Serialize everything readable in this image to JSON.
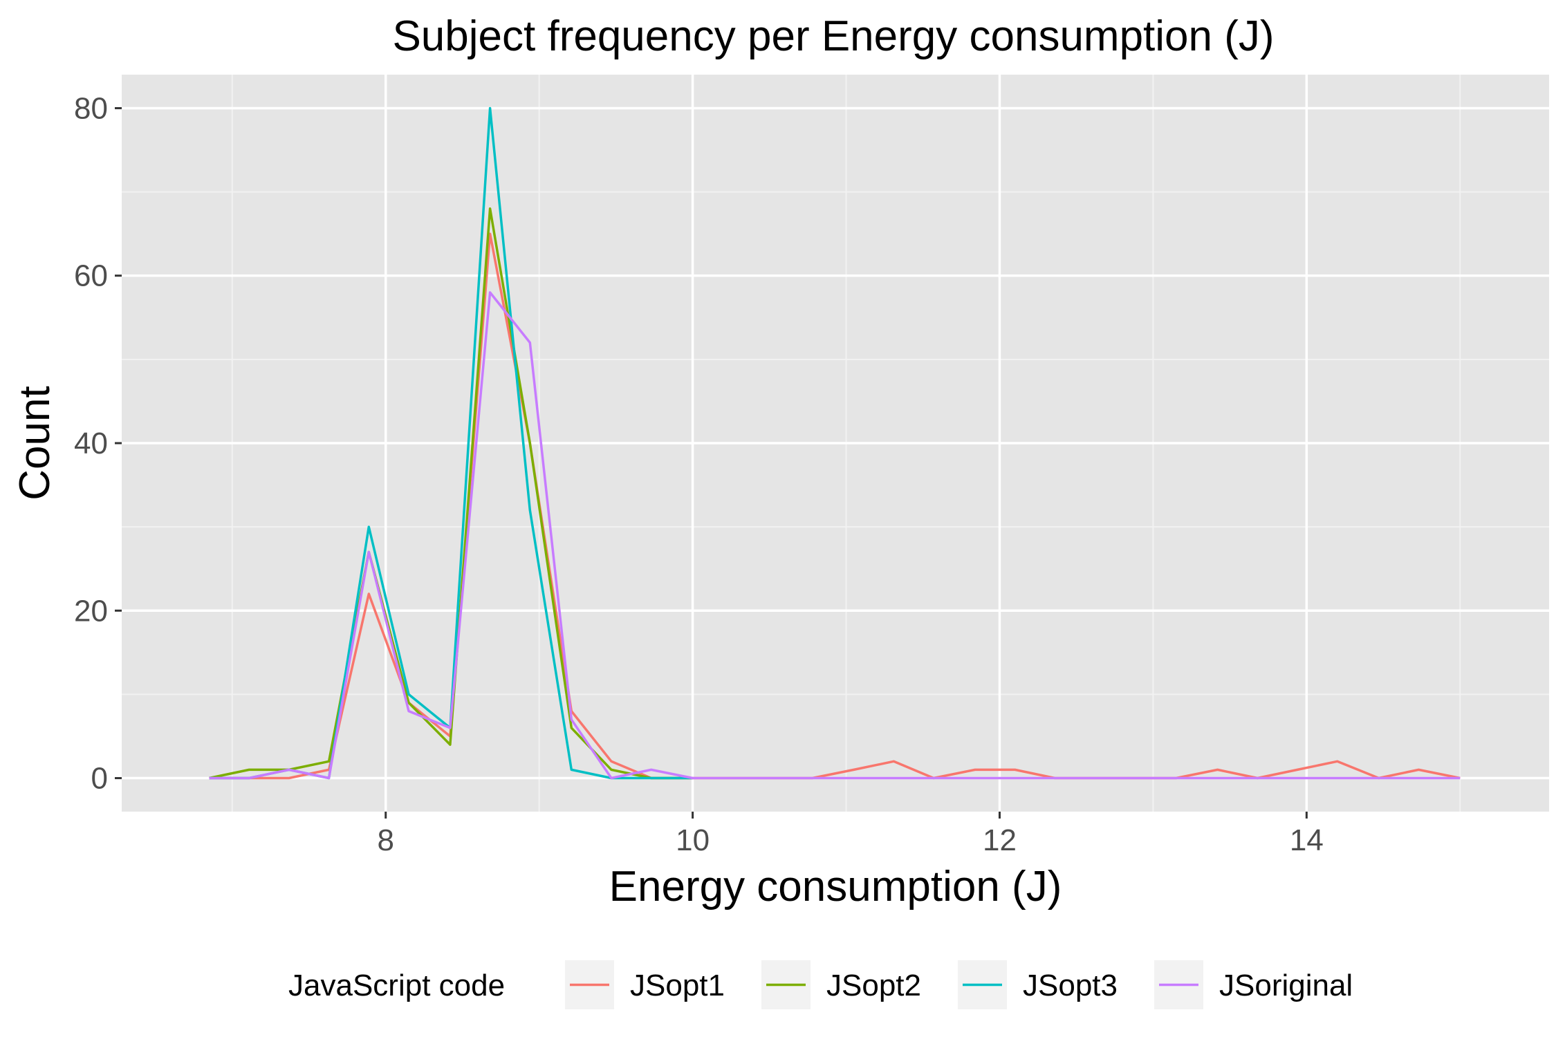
{
  "chart_data": {
    "type": "line",
    "title": "Subject frequency per  Energy consumption (J)",
    "xlabel": "Energy consumption (J)",
    "ylabel": "Count",
    "xlim": [
      6.28,
      15.58
    ],
    "ylim": [
      -4,
      84
    ],
    "x_ticks": [
      8,
      10,
      12,
      14
    ],
    "x_minor_ticks": [
      7,
      9,
      11,
      13,
      15
    ],
    "y_ticks": [
      0,
      20,
      40,
      60,
      80
    ],
    "y_minor_ticks": [
      10,
      30,
      50,
      70
    ],
    "grid": true,
    "legend": {
      "title": "JavaScript code",
      "position": "bottom"
    },
    "series": [
      {
        "name": "JSopt1",
        "color": "#F8766D",
        "x": [
          6.85,
          7.11,
          7.37,
          7.63,
          7.89,
          8.15,
          8.42,
          8.68,
          8.94,
          9.21,
          9.47,
          9.73,
          10.0,
          10.26,
          10.52,
          10.78,
          11.05,
          11.31,
          11.57,
          11.84,
          12.1,
          12.36,
          12.63,
          12.89,
          13.15,
          13.42,
          13.68,
          13.94,
          14.2,
          14.47,
          14.73,
          15.0
        ],
        "values": [
          0,
          0,
          0,
          1,
          22,
          9,
          5,
          65,
          40,
          8,
          2,
          0,
          0,
          0,
          0,
          0,
          1,
          2,
          0,
          1,
          1,
          0,
          0,
          0,
          0,
          1,
          0,
          1,
          2,
          0,
          1,
          0
        ]
      },
      {
        "name": "JSopt2",
        "color": "#7CAE00",
        "x": [
          6.85,
          7.11,
          7.37,
          7.63,
          7.89,
          8.15,
          8.42,
          8.68,
          8.94,
          9.21,
          9.47,
          9.73,
          10.0
        ],
        "values": [
          0,
          1,
          1,
          2,
          27,
          9,
          4,
          68,
          40,
          6,
          1,
          0,
          0
        ]
      },
      {
        "name": "JSopt3",
        "color": "#00BFC4",
        "x": [
          6.85,
          7.11,
          7.37,
          7.63,
          7.89,
          8.15,
          8.42,
          8.68,
          8.94,
          9.21,
          9.47,
          9.73,
          10.0
        ],
        "values": [
          0,
          0,
          1,
          0,
          30,
          10,
          6,
          80,
          32,
          1,
          0,
          0,
          0
        ]
      },
      {
        "name": "JSoriginal",
        "color": "#C77CFF",
        "x": [
          6.85,
          7.11,
          7.37,
          7.63,
          7.89,
          8.15,
          8.42,
          8.68,
          8.94,
          9.21,
          9.47,
          9.73,
          10.0,
          15.0
        ],
        "values": [
          0,
          0,
          1,
          0,
          27,
          8,
          6,
          58,
          52,
          7,
          0,
          1,
          0,
          0
        ]
      }
    ]
  }
}
